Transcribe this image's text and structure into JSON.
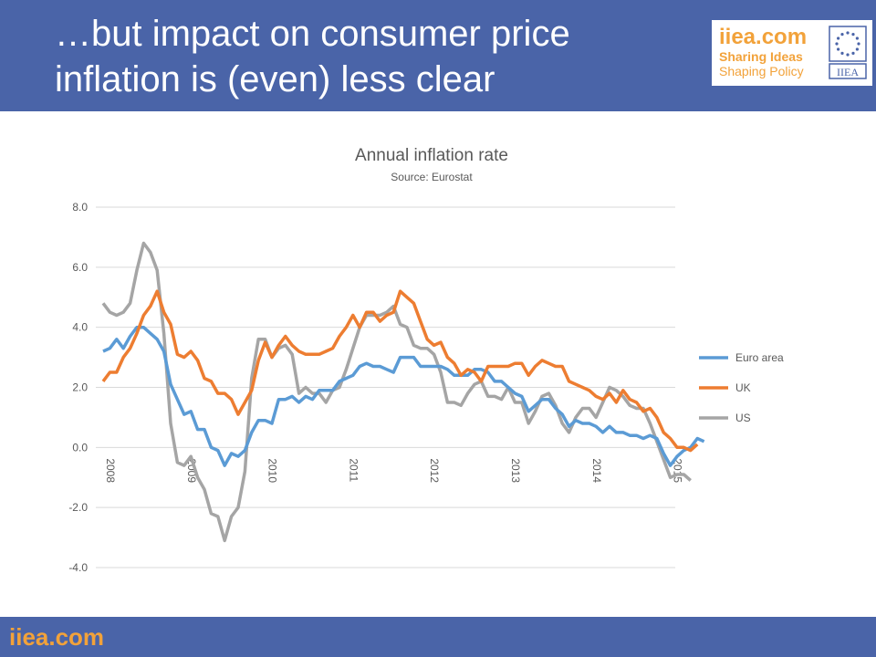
{
  "slide": {
    "title_line1": "…but impact on consumer price",
    "title_line2": "inflation is (even) less clear",
    "logo_domain": "iiea.com",
    "logo_tag1": "Sharing Ideas",
    "logo_tag2": "Shaping Policy",
    "logo_mark_text": "IIEA",
    "footer": "iiea.com",
    "header_color": "#4a64a8",
    "brand_color": "#f2a23a"
  },
  "chart_data": {
    "type": "line",
    "title": "Annual inflation rate",
    "subtitle": "Source: Eurostat",
    "ylim": [
      -4.0,
      8.0
    ],
    "y_ticks": [
      "8.0",
      "6.0",
      "4.0",
      "2.0",
      "0.0",
      "-2.0",
      "-4.0"
    ],
    "x_ticks": [
      "2008",
      "2009",
      "2010",
      "2011",
      "2012",
      "2013",
      "2014",
      "2015"
    ],
    "grid": true,
    "legend_placement": "right",
    "x_start": "2008-01",
    "series": [
      {
        "name": "Euro area",
        "color": "#5b9bd5",
        "values": [
          3.2,
          3.3,
          3.6,
          3.3,
          3.7,
          4.0,
          4.0,
          3.8,
          3.6,
          3.2,
          2.1,
          1.6,
          1.1,
          1.2,
          0.6,
          0.6,
          0.0,
          -0.1,
          -0.6,
          -0.2,
          -0.3,
          -0.1,
          0.5,
          0.9,
          0.9,
          0.8,
          1.6,
          1.6,
          1.7,
          1.5,
          1.7,
          1.6,
          1.9,
          1.9,
          1.9,
          2.2,
          2.3,
          2.4,
          2.7,
          2.8,
          2.7,
          2.7,
          2.6,
          2.5,
          3.0,
          3.0,
          3.0,
          2.7,
          2.7,
          2.7,
          2.7,
          2.6,
          2.4,
          2.4,
          2.4,
          2.6,
          2.6,
          2.5,
          2.2,
          2.2,
          2.0,
          1.8,
          1.7,
          1.2,
          1.4,
          1.6,
          1.6,
          1.3,
          1.1,
          0.7,
          0.9,
          0.8,
          0.8,
          0.7,
          0.5,
          0.7,
          0.5,
          0.5,
          0.4,
          0.4,
          0.3,
          0.4,
          0.3,
          -0.2,
          -0.6,
          -0.3,
          -0.1,
          0.0,
          0.3,
          0.2
        ]
      },
      {
        "name": "UK",
        "color": "#ed7d31",
        "values": [
          2.2,
          2.5,
          2.5,
          3.0,
          3.3,
          3.8,
          4.4,
          4.7,
          5.2,
          4.5,
          4.1,
          3.1,
          3.0,
          3.2,
          2.9,
          2.3,
          2.2,
          1.8,
          1.8,
          1.6,
          1.1,
          1.5,
          1.9,
          2.9,
          3.5,
          3.0,
          3.4,
          3.7,
          3.4,
          3.2,
          3.1,
          3.1,
          3.1,
          3.2,
          3.3,
          3.7,
          4.0,
          4.4,
          4.0,
          4.5,
          4.5,
          4.2,
          4.4,
          4.5,
          5.2,
          5.0,
          4.8,
          4.2,
          3.6,
          3.4,
          3.5,
          3.0,
          2.8,
          2.4,
          2.6,
          2.5,
          2.2,
          2.7,
          2.7,
          2.7,
          2.7,
          2.8,
          2.8,
          2.4,
          2.7,
          2.9,
          2.8,
          2.7,
          2.7,
          2.2,
          2.1,
          2.0,
          1.9,
          1.7,
          1.6,
          1.8,
          1.5,
          1.9,
          1.6,
          1.5,
          1.2,
          1.3,
          1.0,
          0.5,
          0.3,
          0.0,
          0.0,
          -0.1,
          0.1
        ]
      },
      {
        "name": "US",
        "color": "#a5a5a5",
        "values": [
          4.8,
          4.5,
          4.4,
          4.5,
          4.8,
          5.9,
          6.8,
          6.5,
          5.9,
          3.8,
          0.8,
          -0.5,
          -0.6,
          -0.3,
          -1.0,
          -1.4,
          -2.2,
          -2.3,
          -3.1,
          -2.3,
          -2.0,
          -0.8,
          2.3,
          3.6,
          3.6,
          3.0,
          3.3,
          3.4,
          3.1,
          1.8,
          2.0,
          1.8,
          1.8,
          1.5,
          1.9,
          2.0,
          2.6,
          3.3,
          4.0,
          4.4,
          4.4,
          4.4,
          4.5,
          4.7,
          4.1,
          4.0,
          3.4,
          3.3,
          3.3,
          3.1,
          2.5,
          1.5,
          1.5,
          1.4,
          1.8,
          2.1,
          2.2,
          1.7,
          1.7,
          1.6,
          2.0,
          1.5,
          1.5,
          0.8,
          1.2,
          1.7,
          1.8,
          1.4,
          0.8,
          0.5,
          1.0,
          1.3,
          1.3,
          1.0,
          1.5,
          2.0,
          1.9,
          1.7,
          1.4,
          1.3,
          1.3,
          0.8,
          0.2,
          -0.4,
          -1.0,
          -0.9,
          -0.9,
          -1.1
        ]
      }
    ]
  }
}
